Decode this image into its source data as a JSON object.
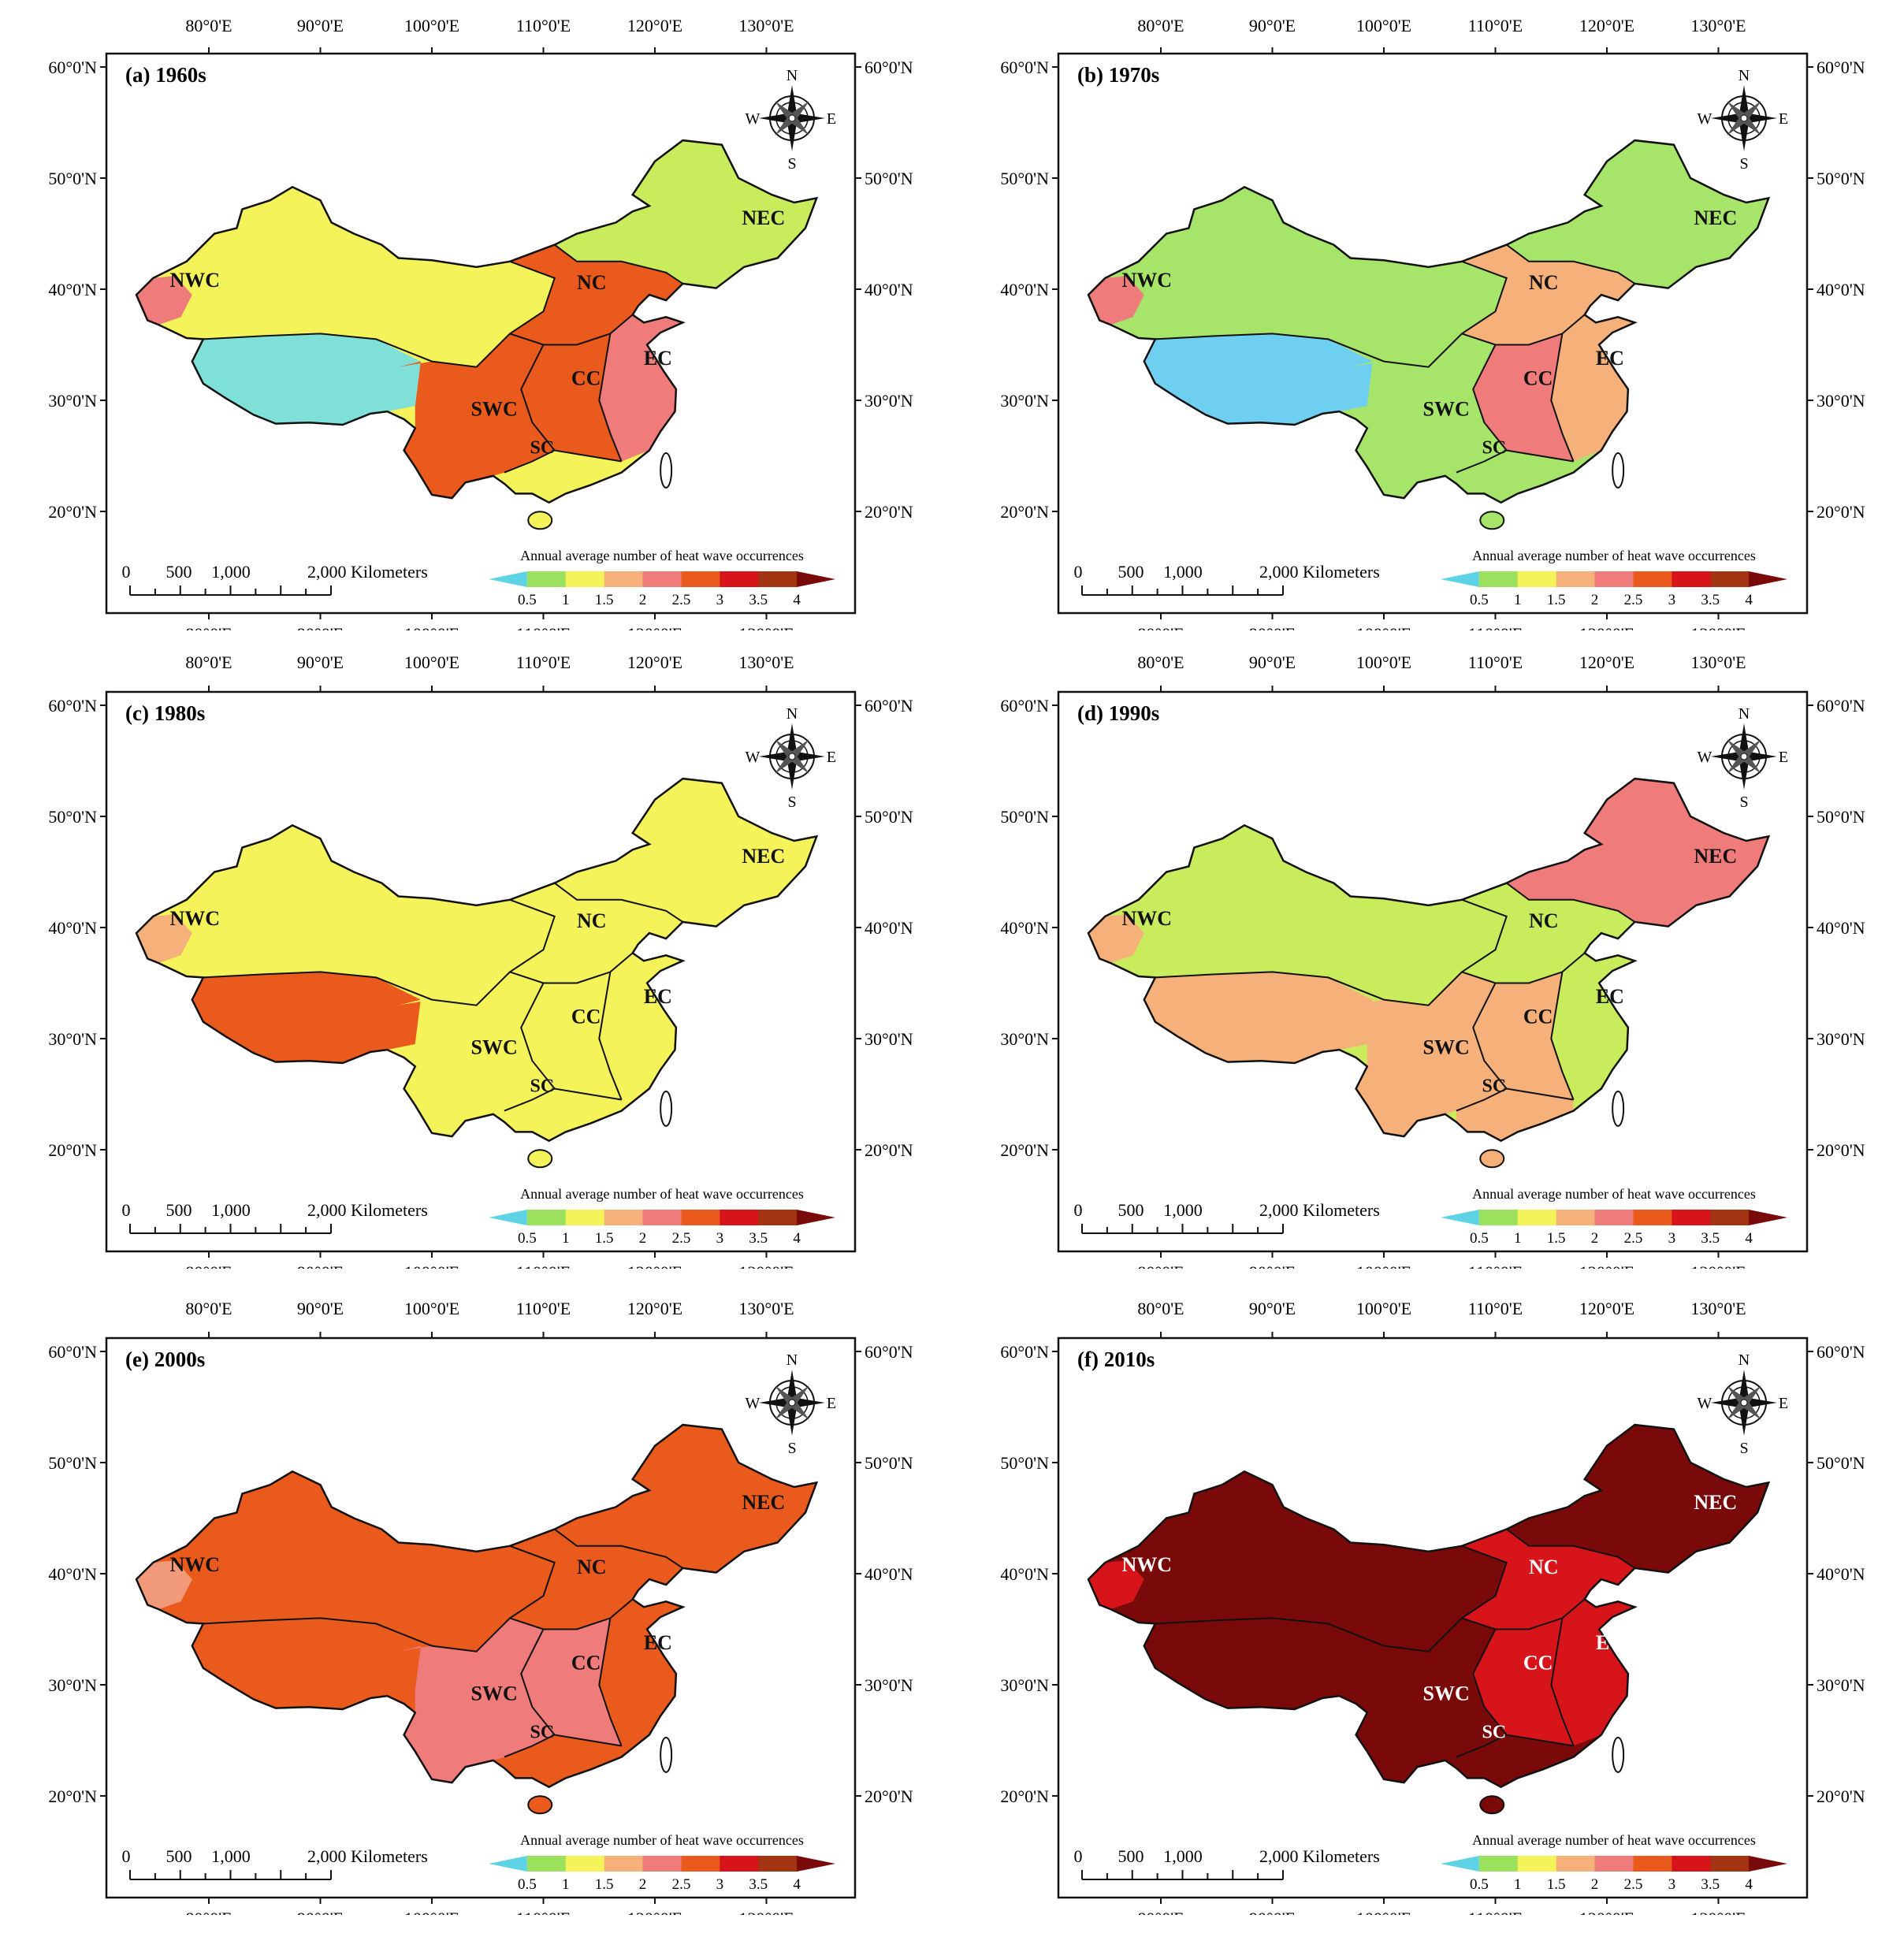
{
  "axes": {
    "lon_ticks": [
      "80°0'E",
      "90°0'E",
      "100°0'E",
      "110°0'E",
      "120°0'E",
      "130°0'E"
    ],
    "lat_ticks": [
      "60°0'N",
      "50°0'N",
      "40°0'N",
      "30°0'N",
      "20°0'N"
    ]
  },
  "compass": {
    "north": "N",
    "south": "S",
    "east": "E",
    "west": "W"
  },
  "scale_bar": {
    "ticks": [
      "0",
      "500",
      "1,000"
    ],
    "end_label": "2,000 Kilometers"
  },
  "legend": {
    "title": "Annual average number of heat wave occurrences",
    "tick_labels": [
      "0.5",
      "1",
      "1.5",
      "2",
      "2.5",
      "3",
      "3.5",
      "4"
    ],
    "class_colors": [
      "#5fd3e6",
      "#9be15d",
      "#f4f45a",
      "#f6b07a",
      "#ef7b7b",
      "#ea5a1d",
      "#d8141b",
      "#a33411",
      "#7a0a0a"
    ]
  },
  "region_labels": [
    "NWC",
    "NEC",
    "NC",
    "EC",
    "CC",
    "SWC",
    "SC"
  ],
  "panels": [
    {
      "title": "(a) 1960s",
      "colors": {
        "NWC": "#f4f45a",
        "NWC_west": "#ef7b7b",
        "TIBET": "#7fe0d8",
        "NEC": "#c8ec5c",
        "NC": "#ea5a1d",
        "EC": "#ef7b7b",
        "CC": "#ea5a1d",
        "SWC": "#ea5a1d",
        "SC": "#f4f45a"
      },
      "label_color": "#111111"
    },
    {
      "title": "(b) 1970s",
      "colors": {
        "NWC": "#a7e46a",
        "NWC_west": "#ef7b7b",
        "TIBET": "#6fcff0",
        "NEC": "#a7e46a",
        "NC": "#f6b07a",
        "EC": "#f6b07a",
        "CC": "#ef7b7b",
        "SWC": "#a7e46a",
        "SC": "#a7e46a"
      },
      "label_color": "#111111"
    },
    {
      "title": "(c) 1980s",
      "colors": {
        "NWC": "#f4f45a",
        "NWC_west": "#f6b07a",
        "TIBET": "#ea5a1d",
        "NEC": "#f4f45a",
        "NC": "#f4f45a",
        "EC": "#f4f45a",
        "CC": "#f4f45a",
        "SWC": "#f4f45a",
        "SC": "#f4f45a"
      },
      "label_color": "#111111"
    },
    {
      "title": "(d) 1990s",
      "colors": {
        "NWC": "#c8ec5c",
        "NWC_west": "#f6b07a",
        "TIBET": "#f6b07a",
        "NEC": "#ef7b7b",
        "NC": "#c8ec5c",
        "EC": "#c8ec5c",
        "CC": "#f6b07a",
        "SWC": "#f6b07a",
        "SC": "#f6b07a"
      },
      "label_color": "#111111"
    },
    {
      "title": "(e) 2000s",
      "colors": {
        "NWC": "#ea5a1d",
        "NWC_west": "#f09a7a",
        "TIBET": "#ea5a1d",
        "NEC": "#ea5a1d",
        "NC": "#ea5a1d",
        "EC": "#ea5a1d",
        "CC": "#ef7b7b",
        "SWC": "#ef7b7b",
        "SC": "#ea5a1d"
      },
      "label_color": "#111111"
    },
    {
      "title": "(f) 2010s",
      "colors": {
        "NWC": "#7a0a0a",
        "NWC_west": "#d8141b",
        "TIBET": "#7a0a0a",
        "NEC": "#7a0a0a",
        "NC": "#d8141b",
        "EC": "#d8141b",
        "CC": "#d8141b",
        "SWC": "#7a0a0a",
        "SC": "#7a0a0a"
      },
      "label_color": "#ffffff"
    }
  ]
}
